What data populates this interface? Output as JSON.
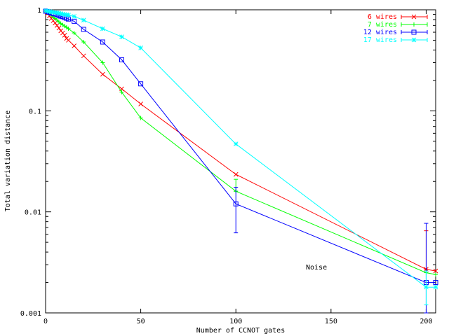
{
  "chart_data": {
    "type": "line",
    "title": "",
    "xlabel": "Number of CCNOT gates",
    "ylabel": "Total variation distance",
    "xlim": [
      0,
      205
    ],
    "ylim": [
      0.001,
      1
    ],
    "yscale": "log",
    "grid": false,
    "legend_position": "top-right",
    "x_ticks": [
      0,
      50,
      100,
      150,
      200
    ],
    "y_ticks": [
      0.001,
      0.01,
      0.1,
      1
    ],
    "x_tick_labels": [
      "0",
      "50",
      "100",
      "150",
      "200"
    ],
    "y_tick_labels": [
      "0.001",
      "0.01",
      "0.1",
      "1"
    ],
    "annotation": "Noise",
    "series": [
      {
        "name": "6 wires",
        "color": "#ff0000",
        "marker": "x",
        "x": [
          0,
          1,
          2,
          3,
          4,
          5,
          6,
          7,
          8,
          9,
          10,
          11,
          12,
          15,
          20,
          30,
          40,
          50,
          100,
          200,
          205
        ],
        "y": [
          0.97,
          0.92,
          0.87,
          0.82,
          0.78,
          0.74,
          0.7,
          0.66,
          0.62,
          0.59,
          0.56,
          0.52,
          0.5,
          0.44,
          0.35,
          0.23,
          0.165,
          0.117,
          0.0235,
          0.0027,
          0.0026
        ],
        "error": [
          [
            200,
            0.0065
          ]
        ]
      },
      {
        "name": "7 wires",
        "color": "#00ff00",
        "marker": "+",
        "x": [
          0,
          1,
          2,
          3,
          4,
          5,
          6,
          7,
          8,
          9,
          10,
          11,
          12,
          15,
          20,
          30,
          40,
          50,
          100,
          200,
          205
        ],
        "y": [
          0.97,
          0.94,
          0.91,
          0.88,
          0.85,
          0.82,
          0.79,
          0.76,
          0.73,
          0.71,
          0.69,
          0.67,
          0.65,
          0.59,
          0.48,
          0.3,
          0.153,
          0.085,
          0.016,
          0.0025,
          0.0024
        ],
        "error": [
          [
            100,
            0.021
          ]
        ]
      },
      {
        "name": "12 wires",
        "color": "#0000ff",
        "marker": "square",
        "x": [
          0,
          1,
          2,
          3,
          4,
          5,
          6,
          7,
          8,
          9,
          10,
          11,
          12,
          15,
          20,
          30,
          40,
          50,
          100,
          200,
          205
        ],
        "y": [
          0.97,
          0.96,
          0.945,
          0.93,
          0.92,
          0.91,
          0.895,
          0.88,
          0.865,
          0.855,
          0.84,
          0.825,
          0.81,
          0.77,
          0.64,
          0.48,
          0.32,
          0.185,
          0.012,
          0.002,
          0.002
        ],
        "error": [
          [
            100,
            0.0062,
            0.0175
          ],
          [
            200,
            0.001,
            0.0077
          ]
        ]
      },
      {
        "name": "17 wires",
        "color": "#00ffff",
        "marker": "asterisk",
        "x": [
          0,
          1,
          2,
          3,
          4,
          5,
          6,
          7,
          8,
          9,
          10,
          11,
          12,
          15,
          20,
          30,
          40,
          50,
          100,
          200,
          205
        ],
        "y": [
          0.98,
          0.97,
          0.962,
          0.955,
          0.947,
          0.94,
          0.932,
          0.924,
          0.916,
          0.908,
          0.9,
          0.893,
          0.886,
          0.86,
          0.79,
          0.65,
          0.54,
          0.42,
          0.047,
          0.0018,
          0.0018
        ],
        "error": [
          [
            200,
            0.0012,
            0.0026
          ]
        ]
      }
    ]
  }
}
